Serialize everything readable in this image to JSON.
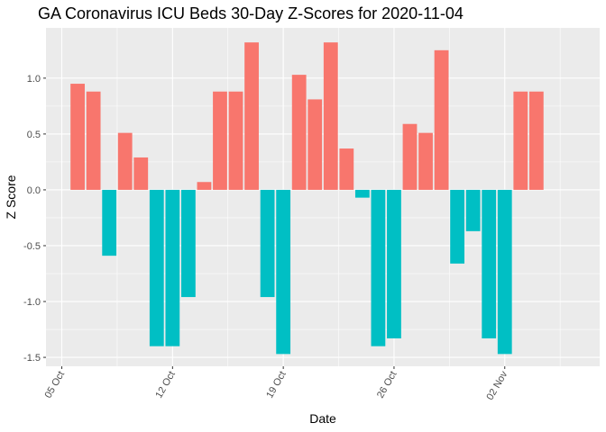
{
  "chart_data": {
    "type": "bar",
    "title": "GA Coronavirus ICU Beds 30-Day Z-Scores for 2020-11-04",
    "xlabel": "Date",
    "ylabel": "Z Score",
    "x_tick_labels": [
      "05 Oct",
      "12 Oct",
      "19 Oct",
      "26 Oct",
      "02 Nov"
    ],
    "x_tick_dates": [
      "2020-10-05",
      "2020-10-12",
      "2020-10-19",
      "2020-10-26",
      "2020-11-02"
    ],
    "y_ticks": [
      -1.5,
      -1.0,
      -0.5,
      0.0,
      0.5,
      1.0
    ],
    "y_tick_labels": [
      "-1.5",
      "-1.0",
      "-0.5",
      "0.0",
      "0.5",
      "1.0"
    ],
    "xlim": [
      "2020-10-04",
      "2020-11-08"
    ],
    "ylim": [
      -1.58,
      1.45
    ],
    "grid": true,
    "legend": "none",
    "colors": {
      "positive": "#F8766D",
      "negative": "#00BFC4",
      "panel": "#EBEBEB",
      "grid": "#FFFFFF"
    },
    "dates": [
      "2020-10-06",
      "2020-10-07",
      "2020-10-08",
      "2020-10-09",
      "2020-10-10",
      "2020-10-11",
      "2020-10-12",
      "2020-10-13",
      "2020-10-14",
      "2020-10-15",
      "2020-10-16",
      "2020-10-17",
      "2020-10-18",
      "2020-10-19",
      "2020-10-20",
      "2020-10-21",
      "2020-10-22",
      "2020-10-23",
      "2020-10-24",
      "2020-10-25",
      "2020-10-26",
      "2020-10-27",
      "2020-10-28",
      "2020-10-29",
      "2020-10-30",
      "2020-10-31",
      "2020-11-01",
      "2020-11-02",
      "2020-11-03",
      "2020-11-04"
    ],
    "values": [
      0.95,
      0.88,
      -0.59,
      0.51,
      0.29,
      -1.4,
      -1.4,
      -0.96,
      0.07,
      0.88,
      0.88,
      1.32,
      -0.96,
      -1.47,
      1.03,
      0.81,
      1.32,
      0.37,
      -0.07,
      -1.4,
      -1.33,
      0.59,
      0.51,
      1.25,
      -0.66,
      -0.37,
      -1.33,
      -1.47,
      0.88,
      0.88
    ]
  }
}
